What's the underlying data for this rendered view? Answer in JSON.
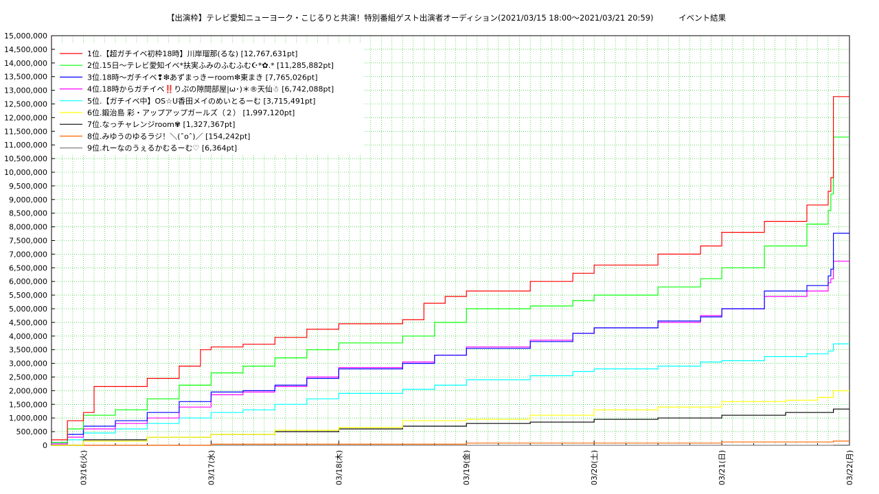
{
  "chart_data": {
    "type": "line",
    "title": "【出演枠】テレビ愛知ニューヨーク・こじるりと共演！特別番組ゲスト出演者オーディション(2021/03/15 18:00〜2021/03/21 20:59)          イベント結果",
    "xlabel": "",
    "ylabel": "",
    "x_ticks": [
      "03/16(火)",
      "03/17(水)",
      "03/18(木)",
      "03/19(金)",
      "03/20(土)",
      "03/21(日)",
      "03/22(月)"
    ],
    "y_ticks": [
      "0",
      "500,000",
      "1,000,000",
      "1,500,000",
      "2,000,000",
      "2,500,000",
      "3,000,000",
      "3,500,000",
      "4,000,000",
      "4,500,000",
      "5,000,000",
      "5,500,000",
      "6,000,000",
      "6,500,000",
      "7,000,000",
      "7,500,000",
      "8,000,000",
      "8,500,000",
      "9,000,000",
      "9,500,000",
      "10,000,000",
      "10,500,000",
      "11,000,000",
      "11,500,000",
      "12,000,000",
      "12,500,000",
      "13,000,000",
      "13,500,000",
      "14,000,000",
      "14,500,000",
      "15,000,000"
    ],
    "xlim": [
      "2021-03-15 18:00",
      "2021-03-22 00:00"
    ],
    "ylim": [
      0,
      15000000
    ],
    "grid": true,
    "legend_position": "top-left",
    "series": [
      {
        "name": "1位.【超ガチイベ初枠18時】川岸瑠那(るな) [12,767,631pt]",
        "color": "#ff0000",
        "x": [
          "2021-03-15 18:00",
          "2021-03-15 21:00",
          "2021-03-16 00:00",
          "2021-03-16 02:00",
          "2021-03-16 06:00",
          "2021-03-16 12:00",
          "2021-03-16 18:00",
          "2021-03-16 22:00",
          "2021-03-17 00:00",
          "2021-03-17 06:00",
          "2021-03-17 12:00",
          "2021-03-17 18:00",
          "2021-03-18 00:00",
          "2021-03-18 12:00",
          "2021-03-18 16:00",
          "2021-03-18 20:00",
          "2021-03-19 00:00",
          "2021-03-19 12:00",
          "2021-03-19 20:00",
          "2021-03-20 00:00",
          "2021-03-20 12:00",
          "2021-03-20 20:00",
          "2021-03-21 00:00",
          "2021-03-21 08:00",
          "2021-03-21 16:00",
          "2021-03-21 20:00",
          "2021-03-21 20:30",
          "2021-03-21 20:59",
          "2021-03-22 00:00"
        ],
        "y": [
          200000,
          900000,
          1200000,
          2150000,
          2150000,
          2450000,
          2900000,
          3500000,
          3600000,
          3700000,
          3950000,
          4250000,
          4450000,
          4600000,
          5200000,
          5450000,
          5650000,
          6000000,
          6300000,
          6600000,
          7000000,
          7300000,
          7800000,
          8200000,
          8800000,
          9300000,
          9800000,
          12767631,
          12767631
        ]
      },
      {
        "name": "2位.15日〜テレビ愛知イベ*扶実ふみのふむふむ☪︎*✿.* [11,285,882pt]",
        "color": "#00ff00",
        "x": [
          "2021-03-15 18:00",
          "2021-03-15 21:00",
          "2021-03-16 00:00",
          "2021-03-16 06:00",
          "2021-03-16 12:00",
          "2021-03-16 18:00",
          "2021-03-17 00:00",
          "2021-03-17 06:00",
          "2021-03-17 12:00",
          "2021-03-17 18:00",
          "2021-03-18 00:00",
          "2021-03-18 12:00",
          "2021-03-18 18:00",
          "2021-03-19 00:00",
          "2021-03-19 12:00",
          "2021-03-19 20:00",
          "2021-03-20 00:00",
          "2021-03-20 12:00",
          "2021-03-20 20:00",
          "2021-03-21 00:00",
          "2021-03-21 08:00",
          "2021-03-21 16:00",
          "2021-03-21 20:00",
          "2021-03-21 20:30",
          "2021-03-21 20:59",
          "2021-03-22 00:00"
        ],
        "y": [
          100000,
          600000,
          1100000,
          1300000,
          1700000,
          2200000,
          2650000,
          2900000,
          3200000,
          3500000,
          3750000,
          4000000,
          4500000,
          5000000,
          5100000,
          5300000,
          5500000,
          5800000,
          6100000,
          6500000,
          7300000,
          8100000,
          8600000,
          9200000,
          11285882,
          11285882
        ]
      },
      {
        "name": "3位.18時〜ガチイベ❢❇あずまっきーroom❇東まき [7,765,026pt]",
        "color": "#0000ff",
        "x": [
          "2021-03-15 18:00",
          "2021-03-15 21:00",
          "2021-03-16 00:00",
          "2021-03-16 06:00",
          "2021-03-16 12:00",
          "2021-03-16 18:00",
          "2021-03-17 00:00",
          "2021-03-17 06:00",
          "2021-03-17 12:00",
          "2021-03-17 18:00",
          "2021-03-18 00:00",
          "2021-03-18 12:00",
          "2021-03-18 18:00",
          "2021-03-19 00:00",
          "2021-03-19 12:00",
          "2021-03-19 20:00",
          "2021-03-20 00:00",
          "2021-03-20 12:00",
          "2021-03-20 20:00",
          "2021-03-21 00:00",
          "2021-03-21 08:00",
          "2021-03-21 16:00",
          "2021-03-21 20:00",
          "2021-03-21 20:30",
          "2021-03-21 20:59",
          "2021-03-22 00:00"
        ],
        "y": [
          100000,
          400000,
          700000,
          900000,
          1200000,
          1600000,
          1950000,
          2000000,
          2200000,
          2450000,
          2800000,
          3000000,
          3300000,
          3550000,
          3800000,
          4100000,
          4300000,
          4550000,
          4700000,
          5000000,
          5650000,
          5850000,
          6200000,
          6450000,
          7765026,
          7765026
        ]
      },
      {
        "name": "4位.18時からガチイベ‼️りぷの隙間部屋|ω･)＊®天仙☃ [6,742,088pt]",
        "color": "#ff00ff",
        "x": [
          "2021-03-15 18:00",
          "2021-03-15 21:00",
          "2021-03-16 00:00",
          "2021-03-16 06:00",
          "2021-03-16 12:00",
          "2021-03-16 18:00",
          "2021-03-17 00:00",
          "2021-03-17 06:00",
          "2021-03-17 12:00",
          "2021-03-17 18:00",
          "2021-03-18 00:00",
          "2021-03-18 12:00",
          "2021-03-18 18:00",
          "2021-03-19 00:00",
          "2021-03-19 12:00",
          "2021-03-19 20:00",
          "2021-03-20 00:00",
          "2021-03-20 12:00",
          "2021-03-20 20:00",
          "2021-03-21 00:00",
          "2021-03-21 08:00",
          "2021-03-21 16:00",
          "2021-03-21 20:00",
          "2021-03-21 20:30",
          "2021-03-21 20:59",
          "2021-03-22 00:00"
        ],
        "y": [
          50000,
          300000,
          600000,
          800000,
          1000000,
          1400000,
          1850000,
          1950000,
          2150000,
          2500000,
          2850000,
          3050000,
          3300000,
          3600000,
          3850000,
          4100000,
          4300000,
          4500000,
          4750000,
          5000000,
          5450000,
          5650000,
          5950000,
          6100000,
          6742088,
          6742088
        ]
      },
      {
        "name": "5位.【ガチイベ中】OS☆U香田メイのめいとるーむ [3,715,491pt]",
        "color": "#00ffff",
        "x": [
          "2021-03-15 18:00",
          "2021-03-15 21:00",
          "2021-03-16 00:00",
          "2021-03-16 06:00",
          "2021-03-16 12:00",
          "2021-03-16 18:00",
          "2021-03-17 00:00",
          "2021-03-17 06:00",
          "2021-03-17 12:00",
          "2021-03-17 18:00",
          "2021-03-18 00:00",
          "2021-03-18 12:00",
          "2021-03-18 18:00",
          "2021-03-19 00:00",
          "2021-03-19 12:00",
          "2021-03-19 20:00",
          "2021-03-20 00:00",
          "2021-03-20 12:00",
          "2021-03-20 20:00",
          "2021-03-21 00:00",
          "2021-03-21 08:00",
          "2021-03-21 16:00",
          "2021-03-21 20:00",
          "2021-03-21 20:59",
          "2021-03-22 00:00"
        ],
        "y": [
          50000,
          200000,
          450000,
          600000,
          800000,
          1000000,
          1200000,
          1300000,
          1500000,
          1700000,
          1900000,
          2050000,
          2200000,
          2400000,
          2550000,
          2700000,
          2800000,
          2900000,
          3050000,
          3100000,
          3250000,
          3350000,
          3450000,
          3715491,
          3715491
        ]
      },
      {
        "name": "6位.鍛治島 彩・アップアップガールズ（２） [1,997,120pt]",
        "color": "#ffff00",
        "x": [
          "2021-03-15 18:00",
          "2021-03-16 00:00",
          "2021-03-16 12:00",
          "2021-03-17 00:00",
          "2021-03-17 12:00",
          "2021-03-18 00:00",
          "2021-03-18 12:00",
          "2021-03-19 00:00",
          "2021-03-19 12:00",
          "2021-03-20 00:00",
          "2021-03-20 12:00",
          "2021-03-21 00:00",
          "2021-03-21 12:00",
          "2021-03-21 18:00",
          "2021-03-21 20:59",
          "2021-03-22 00:00"
        ],
        "y": [
          0,
          150000,
          300000,
          400000,
          550000,
          650000,
          900000,
          950000,
          1100000,
          1300000,
          1400000,
          1600000,
          1650000,
          1750000,
          1997120,
          1997120
        ]
      },
      {
        "name": "7位.なっチャレンジroom✾ [1,327,367pt]",
        "color": "#000000",
        "x": [
          "2021-03-15 18:00",
          "2021-03-16 00:00",
          "2021-03-16 12:00",
          "2021-03-17 00:00",
          "2021-03-17 12:00",
          "2021-03-18 00:00",
          "2021-03-18 12:00",
          "2021-03-19 00:00",
          "2021-03-19 12:00",
          "2021-03-20 00:00",
          "2021-03-20 12:00",
          "2021-03-21 00:00",
          "2021-03-21 12:00",
          "2021-03-21 20:59",
          "2021-03-22 00:00"
        ],
        "y": [
          0,
          200000,
          300000,
          400000,
          500000,
          600000,
          700000,
          800000,
          850000,
          950000,
          1000000,
          1100000,
          1200000,
          1327367,
          1327367
        ]
      },
      {
        "name": "8位.みゆうのゆるラジ！＼(ˆoˆ)／ [154,242pt]",
        "color": "#ff6600",
        "x": [
          "2021-03-15 18:00",
          "2021-03-17 00:00",
          "2021-03-19 00:00",
          "2021-03-21 00:00",
          "2021-03-21 20:59",
          "2021-03-22 00:00"
        ],
        "y": [
          0,
          40000,
          80000,
          120000,
          154242,
          154242
        ]
      },
      {
        "name": "9位.れーなのうぇるかむるーむ♡ [6,364pt]",
        "color": "#808080",
        "x": [
          "2021-03-15 18:00",
          "2021-03-21 20:59",
          "2021-03-22 00:00"
        ],
        "y": [
          0,
          6364,
          6364
        ]
      }
    ]
  }
}
